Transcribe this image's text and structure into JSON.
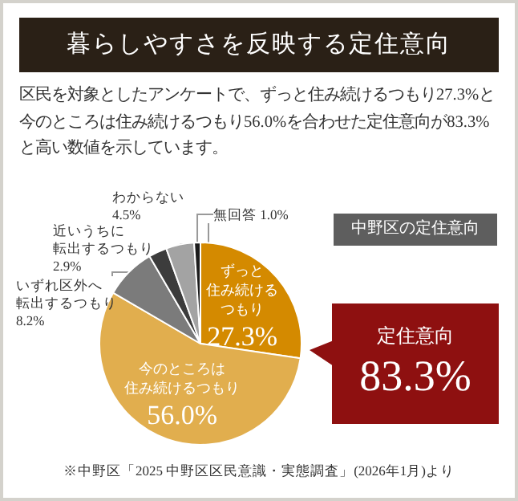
{
  "chart_data": {
    "type": "pie",
    "title": "暮らしやすさを反映する定住意向",
    "subtitle": "区民を対象としたアンケートで、ずっと住み続けるつもり27.3%と今のところは住み続けるつもり56.0%を合わせた定住意向が83.3%と高い数値を示しています。",
    "categories": [
      "ずっと住み続けるつもり",
      "今のところは住み続けるつもり",
      "いずれ区外へ転出するつもり",
      "近いうちに転出するつもり",
      "わからない",
      "無回答"
    ],
    "values": [
      27.3,
      56.0,
      8.2,
      2.9,
      4.5,
      1.0
    ],
    "colors": [
      "#d48a00",
      "#e1ae4e",
      "#7b7b7b",
      "#3c3c3c",
      "#a3a3a3",
      "#1c1c1c"
    ],
    "value_labels": [
      "27.3%",
      "56.0%",
      "8.2%",
      "2.9%",
      "4.5%",
      "1.0%"
    ],
    "annotations": [
      "中野区の定住意向",
      "定住意向",
      "83.3%",
      "※中野区「2025 中野区区民意識・実態調査」(2026年1月)より"
    ]
  }
}
